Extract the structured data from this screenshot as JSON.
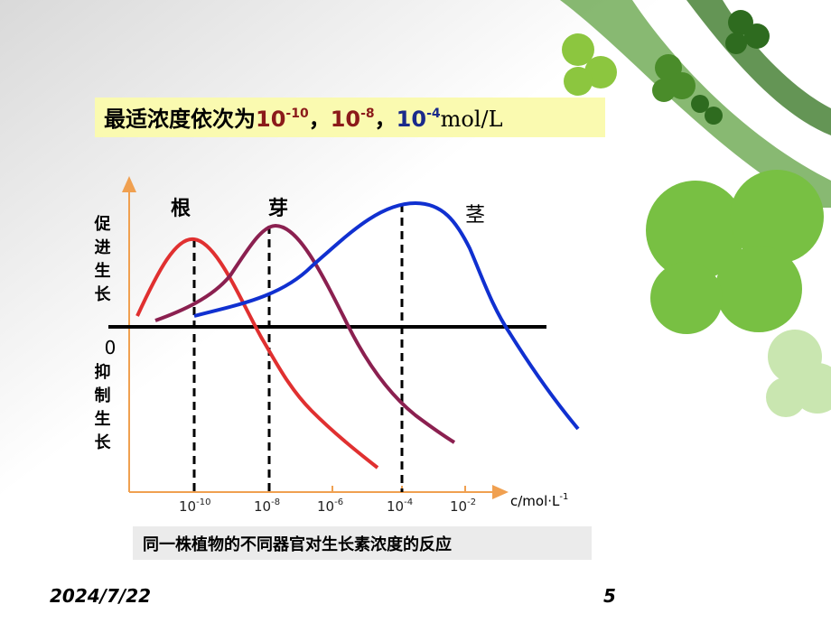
{
  "header": {
    "text": "最适浓度依次为",
    "concentrations": [
      {
        "base": "10",
        "exponent": "-10",
        "separator": "，"
      },
      {
        "base": "10",
        "exponent": "-8",
        "separator": "，"
      },
      {
        "base": "10",
        "exponent": "-4"
      }
    ],
    "unit": "mol/L"
  },
  "chart": {
    "y_label_top": "促进生长",
    "zero": "0",
    "y_label_bottom": "抑制生长",
    "curves": [
      {
        "label": "根"
      },
      {
        "label": "芽"
      },
      {
        "label": "茎"
      }
    ],
    "x_ticks": [
      {
        "base": "10",
        "exponent": "-10"
      },
      {
        "base": "10",
        "exponent": "-8"
      },
      {
        "base": "10",
        "exponent": "-6"
      },
      {
        "base": "10",
        "exponent": "-4"
      },
      {
        "base": "10",
        "exponent": "-2"
      }
    ],
    "x_label": {
      "text": "c/mol·L",
      "exponent": "-1"
    }
  },
  "caption": "同一株植物的不同器官对生长素浓度的反应",
  "footer": {
    "date": "2024/7/22",
    "page": "5"
  }
}
